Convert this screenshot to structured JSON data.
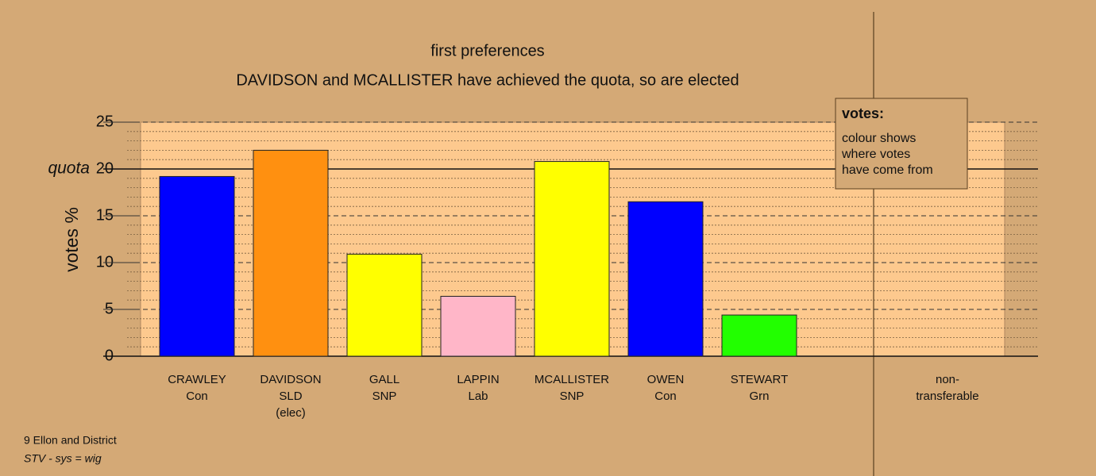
{
  "chart_data": {
    "type": "bar",
    "title": "first preferences",
    "subtitle": "DAVIDSON and MCALLISTER have achieved the quota, so are elected",
    "y_label": "votes %",
    "categories": [
      [
        "CRAWLEY",
        "Con"
      ],
      [
        "DAVIDSON",
        "SLD",
        "(elec)"
      ],
      [
        "GALL",
        "SNP"
      ],
      [
        "LAPPIN",
        "Lab"
      ],
      [
        "MCALLISTER",
        "SNP"
      ],
      [
        "OWEN",
        "Con"
      ],
      [
        "STEWART",
        "Grn"
      ],
      [
        "non-",
        "transferable"
      ]
    ],
    "values": [
      19.2,
      22.0,
      10.9,
      6.4,
      20.8,
      16.5,
      4.4,
      0
    ],
    "colors": [
      "#0000ff",
      "#ff9010",
      "#ffff00",
      "#ffb6c8",
      "#ffff00",
      "#0000ff",
      "#22ff00",
      "#ffcc90"
    ],
    "ylim": [
      0,
      25
    ],
    "yticks": [
      0,
      5,
      10,
      15,
      20,
      25
    ],
    "minor_yticks": [
      1,
      2,
      3,
      4,
      6,
      7,
      8,
      9,
      11,
      12,
      13,
      14,
      16,
      17,
      18,
      19,
      21,
      22,
      23,
      24
    ],
    "quota": {
      "value": 20,
      "label": "quota"
    },
    "grid": true,
    "legend": {
      "title": "votes:",
      "lines": [
        "colour shows",
        "where votes",
        "have come from"
      ]
    },
    "footnotes": [
      "9 Ellon and District",
      "STV - sys = wig"
    ]
  }
}
